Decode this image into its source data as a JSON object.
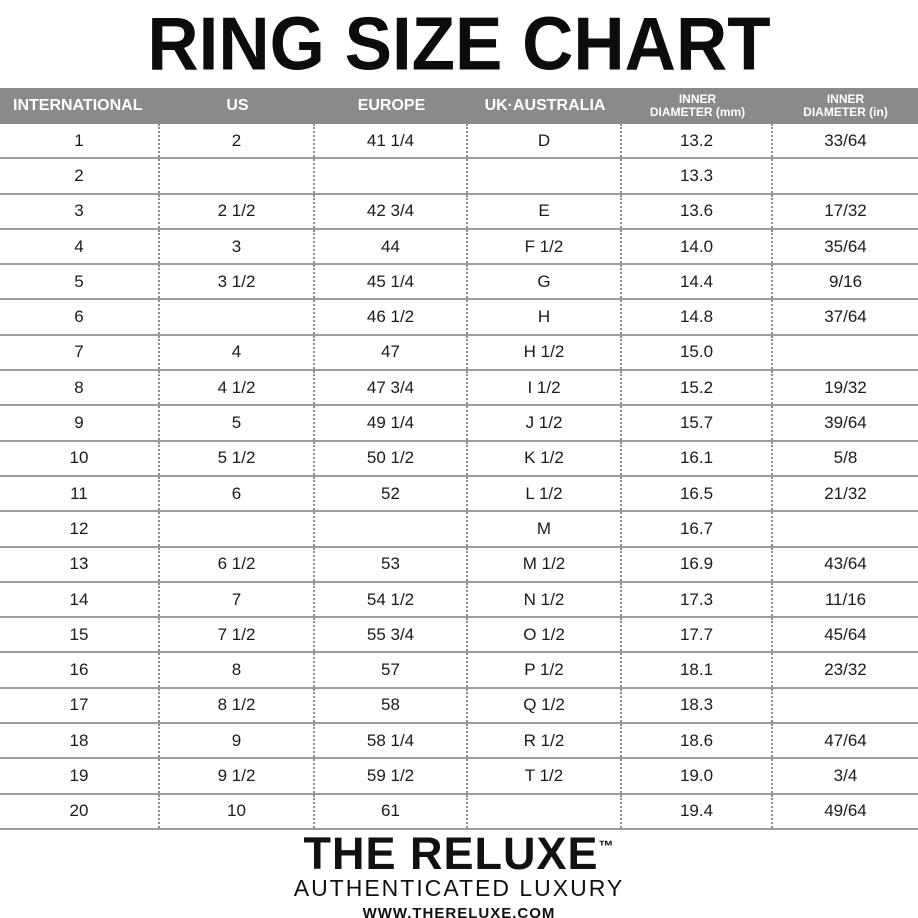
{
  "title": "RING SIZE CHART",
  "colors": {
    "header_bg": "#8a8a8a",
    "header_text": "#ffffff",
    "grid_line": "#9c9c9c",
    "dotted_line": "#8d8d8d",
    "text": "#1b1b1b"
  },
  "chart_data": {
    "type": "table",
    "title": "RING SIZE CHART",
    "columns": [
      {
        "line1": "INTERNATIONAL"
      },
      {
        "line1": "US"
      },
      {
        "line1": "EUROPE"
      },
      {
        "line1": "UK·AUSTRALIA"
      },
      {
        "line1": "INNER",
        "line2": "DIAMETER (mm)"
      },
      {
        "line1": "INNER",
        "line2": "DIAMETER (in)"
      }
    ],
    "rows": [
      [
        "1",
        "2",
        "41 1/4",
        "D",
        "13.2",
        "33/64"
      ],
      [
        "2",
        "",
        "",
        "",
        "13.3",
        ""
      ],
      [
        "3",
        "2 1/2",
        "42 3/4",
        "E",
        "13.6",
        "17/32"
      ],
      [
        "4",
        "3",
        "44",
        "F 1/2",
        "14.0",
        "35/64"
      ],
      [
        "5",
        "3 1/2",
        "45 1/4",
        "G",
        "14.4",
        "9/16"
      ],
      [
        "6",
        "",
        "46 1/2",
        "H",
        "14.8",
        "37/64"
      ],
      [
        "7",
        "4",
        "47",
        "H 1/2",
        "15.0",
        ""
      ],
      [
        "8",
        "4 1/2",
        "47 3/4",
        "I 1/2",
        "15.2",
        "19/32"
      ],
      [
        "9",
        "5",
        "49 1/4",
        "J 1/2",
        "15.7",
        "39/64"
      ],
      [
        "10",
        "5 1/2",
        "50 1/2",
        "K 1/2",
        "16.1",
        "5/8"
      ],
      [
        "11",
        "6",
        "52",
        "L 1/2",
        "16.5",
        "21/32"
      ],
      [
        "12",
        "",
        "",
        "M",
        "16.7",
        ""
      ],
      [
        "13",
        "6 1/2",
        "53",
        "M 1/2",
        "16.9",
        "43/64"
      ],
      [
        "14",
        "7",
        "54 1/2",
        "N 1/2",
        "17.3",
        "11/16"
      ],
      [
        "15",
        "7 1/2",
        "55 3/4",
        "O 1/2",
        "17.7",
        "45/64"
      ],
      [
        "16",
        "8",
        "57",
        "P 1/2",
        "18.1",
        "23/32"
      ],
      [
        "17",
        "8 1/2",
        "58",
        "Q 1/2",
        "18.3",
        ""
      ],
      [
        "18",
        "9",
        "58 1/4",
        "R 1/2",
        "18.6",
        "47/64"
      ],
      [
        "19",
        "9 1/2",
        "59 1/2",
        "T 1/2",
        "19.0",
        "3/4"
      ],
      [
        "20",
        "10",
        "61",
        "",
        "19.4",
        "49/64"
      ]
    ]
  },
  "footer": {
    "brand": "THE RELUXE",
    "trademark": "™",
    "tagline": "AUTHENTICATED LUXURY",
    "website": "WWW.THERELUXE.COM"
  }
}
